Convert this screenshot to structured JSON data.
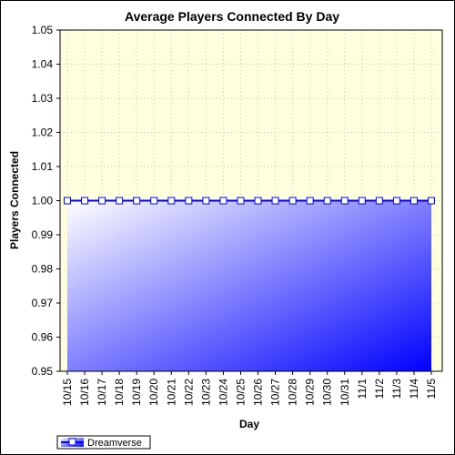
{
  "chart_data": {
    "type": "area",
    "title": "Average Players Connected By Day",
    "xlabel": "Day",
    "ylabel": "Players Connected",
    "categories": [
      "10/15",
      "10/16",
      "10/17",
      "10/18",
      "10/19",
      "10/20",
      "10/21",
      "10/22",
      "10/23",
      "10/24",
      "10/25",
      "10/26",
      "10/27",
      "10/28",
      "10/29",
      "10/30",
      "10/31",
      "11/1",
      "11/2",
      "11/3",
      "11/4",
      "11/5"
    ],
    "series": [
      {
        "name": "Dreamverse",
        "values": [
          1,
          1,
          1,
          1,
          1,
          1,
          1,
          1,
          1,
          1,
          1,
          1,
          1,
          1,
          1,
          1,
          1,
          1,
          1,
          1,
          1,
          1
        ]
      }
    ],
    "ylim": [
      0.95,
      1.05
    ],
    "yticks": [
      "0.95",
      "0.96",
      "0.97",
      "0.98",
      "0.99",
      "1.00",
      "1.01",
      "1.02",
      "1.03",
      "1.04",
      "1.05"
    ],
    "grid": true,
    "legend": "bottom-left",
    "colors": {
      "plot_background": "#ffffe0",
      "series_line": "#0000ff",
      "fill_start": "#ffffff",
      "fill_end": "#0000ff",
      "grid": "#c8c8a0"
    }
  }
}
